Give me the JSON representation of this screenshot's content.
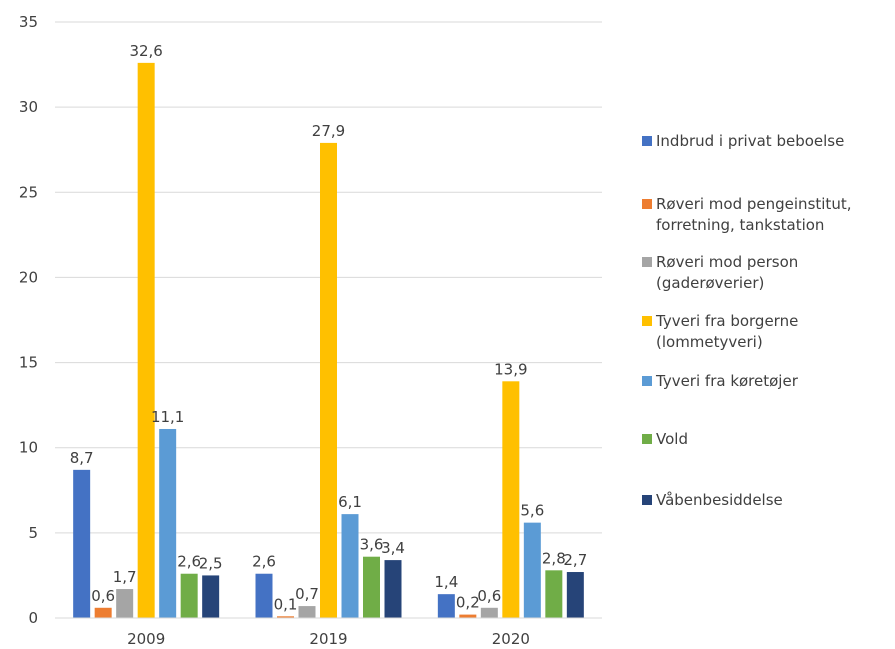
{
  "chart_data": {
    "type": "bar",
    "categories": [
      "2009",
      "2019",
      "2020"
    ],
    "series": [
      {
        "name": "Indbrud i privat beboelse",
        "color": "#4472C4",
        "values": [
          8.7,
          2.6,
          1.4
        ],
        "labels": [
          "8,7",
          "2,6",
          "1,4"
        ]
      },
      {
        "name": "Røveri mod pengeinstitut, forretning, tankstation",
        "color": "#ED7D31",
        "values": [
          0.6,
          0.1,
          0.2
        ],
        "labels": [
          "0,6",
          "0,1",
          "0,2"
        ]
      },
      {
        "name": "Røveri mod person (gaderøverier)",
        "color": "#A5A5A5",
        "values": [
          1.7,
          0.7,
          0.6
        ],
        "labels": [
          "1,7",
          "0,7",
          "0,6"
        ]
      },
      {
        "name": "Tyveri fra borgerne (lommetyveri)",
        "color": "#FFC000",
        "values": [
          32.6,
          27.9,
          13.9
        ],
        "labels": [
          "32,6",
          "27,9",
          "13,9"
        ]
      },
      {
        "name": "Tyveri fra køretøjer",
        "color": "#5B9BD5",
        "values": [
          11.1,
          6.1,
          5.6
        ],
        "labels": [
          "11,1",
          "6,1",
          "5,6"
        ]
      },
      {
        "name": "Vold",
        "color": "#70AD47",
        "values": [
          2.6,
          3.6,
          2.8
        ],
        "labels": [
          "2,6",
          "3,6",
          "2,8"
        ]
      },
      {
        "name": "Våbenbesiddelse",
        "color": "#264478",
        "values": [
          2.5,
          3.4,
          2.7
        ],
        "labels": [
          "2,5",
          "3,4",
          "2,7"
        ]
      }
    ],
    "ylim": [
      0,
      35
    ],
    "yticks": [
      0,
      5,
      10,
      15,
      20,
      25,
      30,
      35
    ],
    "grid": true,
    "legend_position": "right"
  },
  "legend": {
    "items": [
      {
        "label": "Indbrud i privat beboelse"
      },
      {
        "label": "Røveri mod pengeinstitut,\nforretning, tankstation"
      },
      {
        "label": "Røveri mod person\n(gaderøverier)"
      },
      {
        "label": "Tyveri fra borgerne\n(lommetyveri)"
      },
      {
        "label": "Tyveri fra køretøjer"
      },
      {
        "label": "Vold"
      },
      {
        "label": "Våbenbesiddelse"
      }
    ]
  }
}
